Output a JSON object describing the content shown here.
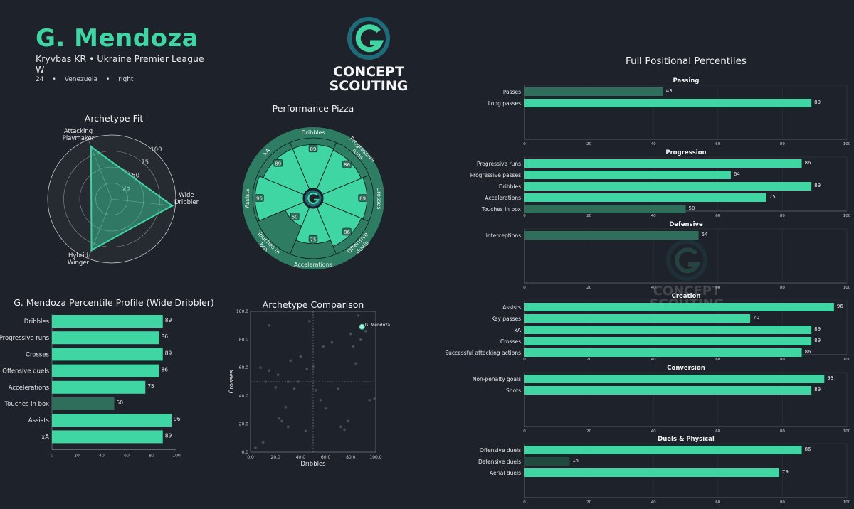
{
  "player": {
    "name": "G. Mendoza",
    "club_league": "Kryvbas KR • Ukraine Premier League",
    "position": "W",
    "age": "24",
    "nationality": "Venezuela",
    "foot": "right"
  },
  "logo": {
    "word1": "CONCEPT",
    "word2": "SCOUTING"
  },
  "colors": {
    "accent": "#3fd6a4",
    "low": "#2e6e5a",
    "verylow": "#1f4a3d",
    "background": "#1e222a"
  },
  "chart_data": [
    {
      "id": "archetype-fit",
      "type": "radar",
      "title": "Archetype Fit",
      "axes": [
        "Attacking\nPlaymaker",
        "Wide\nDribbler",
        "Hybrid\nWinger"
      ],
      "values": [
        88,
        95,
        86
      ],
      "rings": [
        25,
        50,
        75,
        100
      ],
      "range": [
        0,
        100
      ]
    },
    {
      "id": "performance-pizza",
      "type": "pie",
      "title": "Performance Pizza",
      "slices": [
        {
          "label": "Dribbles",
          "value": 89
        },
        {
          "label": "Progressive\nruns",
          "value": 86
        },
        {
          "label": "Crosses",
          "value": 89
        },
        {
          "label": "Offensive\nduels",
          "value": 86
        },
        {
          "label": "Accelerations",
          "value": 75
        },
        {
          "label": "Touches in\nbox",
          "value": 50
        },
        {
          "label": "Assists",
          "value": 96
        },
        {
          "label": "xA",
          "value": 89
        }
      ]
    },
    {
      "id": "percentile-profile",
      "type": "bar",
      "title": "G. Mendoza Percentile Profile (Wide Dribbler)",
      "categories": [
        "Dribbles",
        "Progressive runs",
        "Crosses",
        "Offensive duels",
        "Accelerations",
        "Touches in box",
        "Assists",
        "xA"
      ],
      "values": [
        89,
        86,
        89,
        86,
        75,
        50,
        96,
        89
      ],
      "xlim": [
        0,
        100
      ],
      "ticks": [
        0,
        20,
        40,
        60,
        80,
        100
      ]
    },
    {
      "id": "archetype-comparison",
      "type": "scatter",
      "title": "Archetype Comparison",
      "xlabel": "Dribbles",
      "ylabel": "Crosses",
      "xlim": [
        0,
        100
      ],
      "ylim": [
        0,
        100
      ],
      "ticks": [
        "0.0",
        "20.0",
        "40.0",
        "60.0",
        "80.0",
        "100.0"
      ],
      "highlight": {
        "label": "G. Mendoza",
        "x": 89,
        "y": 89
      },
      "points": [
        [
          4,
          3
        ],
        [
          8,
          60
        ],
        [
          10,
          7
        ],
        [
          12,
          50
        ],
        [
          15,
          58
        ],
        [
          20,
          46
        ],
        [
          22,
          55
        ],
        [
          23,
          24
        ],
        [
          25,
          22
        ],
        [
          28,
          32
        ],
        [
          30,
          50
        ],
        [
          32,
          65
        ],
        [
          35,
          45
        ],
        [
          38,
          50
        ],
        [
          40,
          68
        ],
        [
          44,
          15
        ],
        [
          45,
          59
        ],
        [
          47,
          93
        ],
        [
          50,
          61
        ],
        [
          52,
          44
        ],
        [
          56,
          37
        ],
        [
          58,
          75
        ],
        [
          60,
          31
        ],
        [
          65,
          78
        ],
        [
          70,
          45
        ],
        [
          72,
          18
        ],
        [
          75,
          16
        ],
        [
          78,
          22
        ],
        [
          80,
          84
        ],
        [
          82,
          75
        ],
        [
          84,
          63
        ],
        [
          86,
          97
        ],
        [
          88,
          80
        ],
        [
          92,
          86
        ],
        [
          95,
          37
        ],
        [
          99,
          38
        ],
        [
          15,
          90
        ],
        [
          30,
          18
        ]
      ],
      "median": {
        "x": 50,
        "y": 50
      }
    },
    {
      "id": "full-positional-percentiles",
      "type": "bar",
      "title": "Full Positional Percentiles",
      "ticks": [
        0,
        20,
        40,
        60,
        80,
        100
      ],
      "groups": [
        {
          "name": "Passing",
          "categories": [
            "Passes",
            "Long passes"
          ],
          "values": [
            43,
            89
          ]
        },
        {
          "name": "Progression",
          "categories": [
            "Progressive runs",
            "Progressive passes",
            "Dribbles",
            "Accelerations",
            "Touches in box"
          ],
          "values": [
            86,
            64,
            89,
            75,
            50
          ]
        },
        {
          "name": "Defensive",
          "categories": [
            "Interceptions"
          ],
          "values": [
            54
          ]
        },
        {
          "name": "Creation",
          "categories": [
            "Assists",
            "Key passes",
            "xA",
            "Crosses",
            "Successful attacking actions"
          ],
          "values": [
            96,
            70,
            89,
            89,
            86
          ]
        },
        {
          "name": "Conversion",
          "categories": [
            "Non-penalty goals",
            "Shots"
          ],
          "values": [
            93,
            89
          ]
        },
        {
          "name": "Duels & Physical",
          "categories": [
            "Offensive duels",
            "Defensive duels",
            "Aerial duels"
          ],
          "values": [
            86,
            14,
            79
          ]
        }
      ]
    }
  ]
}
